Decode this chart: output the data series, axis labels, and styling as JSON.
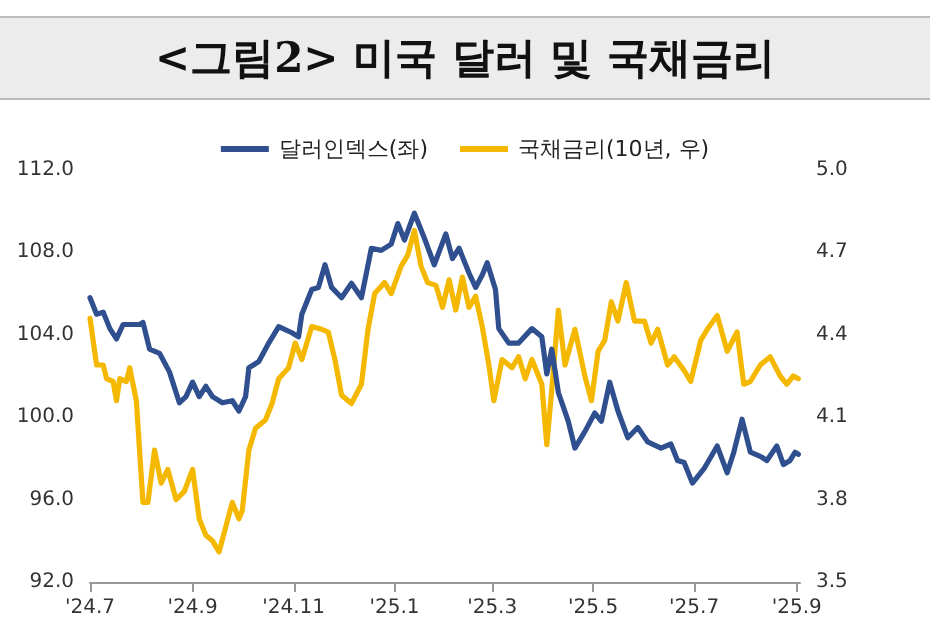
{
  "chart_data": {
    "type": "line",
    "title": "<그림2> 미국 달러 및 국채금리",
    "legend": "top",
    "grid": false,
    "marker": "none",
    "line_style": "solid",
    "xlim": [
      "2024-07-01",
      "2025-09-03"
    ],
    "xticks": [
      {
        "value": "2024-07-01",
        "label": "'24.7"
      },
      {
        "value": "2024-09-01",
        "label": "'24.9"
      },
      {
        "value": "2024-11-01",
        "label": "'24.11"
      },
      {
        "value": "2025-01-01",
        "label": "'25.1"
      },
      {
        "value": "2025-03-01",
        "label": "'25.3"
      },
      {
        "value": "2025-05-01",
        "label": "'25.5"
      },
      {
        "value": "2025-07-01",
        "label": "'25.7"
      },
      {
        "value": "2025-09-01",
        "label": "'25.9"
      }
    ],
    "ylim": [
      92,
      112
    ],
    "yticks": [
      {
        "value": 92,
        "label": "92.0"
      },
      {
        "value": 96,
        "label": "96.0"
      },
      {
        "value": 100,
        "label": "100.0"
      },
      {
        "value": 104,
        "label": "104.0"
      },
      {
        "value": 108,
        "label": "108.0"
      },
      {
        "value": 112,
        "label": "112.0"
      }
    ],
    "y2lim": [
      3.5,
      5.0
    ],
    "y2ticks": [
      3.5,
      3.8,
      4.1,
      4.4,
      4.7,
      {
        "value": 5.0,
        "label": "5.0"
      }
    ],
    "series": [
      {
        "name": "달러인덱스(좌)",
        "color": "#2f4f8f",
        "x": [
          "2024-07-01",
          "2024-07-05",
          "2024-07-09",
          "2024-07-13",
          "2024-07-17",
          "2024-07-21",
          "2024-07-31",
          "2024-08-02",
          "2024-08-06",
          "2024-08-12",
          "2024-08-18",
          "2024-08-24",
          "2024-08-28",
          "2024-09-01",
          "2024-09-05",
          "2024-09-09",
          "2024-09-13",
          "2024-09-19",
          "2024-09-25",
          "2024-09-29",
          "2024-10-03",
          "2024-10-05",
          "2024-10-11",
          "2024-10-17",
          "2024-10-23",
          "2024-10-31",
          "2024-11-04",
          "2024-11-06",
          "2024-11-12",
          "2024-11-16",
          "2024-11-20",
          "2024-11-24",
          "2024-11-30",
          "2024-12-06",
          "2024-12-12",
          "2024-12-18",
          "2024-12-24",
          "2024-12-30",
          "2025-01-03",
          "2025-01-07",
          "2025-01-13",
          "2025-01-19",
          "2025-01-25",
          "2025-02-01",
          "2025-02-05",
          "2025-02-09",
          "2025-02-15",
          "2025-02-19",
          "2025-02-23",
          "2025-02-26",
          "2025-03-03",
          "2025-03-05",
          "2025-03-11",
          "2025-03-17",
          "2025-03-25",
          "2025-03-31",
          "2025-04-03",
          "2025-04-06",
          "2025-04-10",
          "2025-04-16",
          "2025-04-20",
          "2025-04-26",
          "2025-05-02",
          "2025-05-06",
          "2025-05-11",
          "2025-05-16",
          "2025-05-22",
          "2025-05-28",
          "2025-06-03",
          "2025-06-11",
          "2025-06-17",
          "2025-06-21",
          "2025-06-25",
          "2025-06-30",
          "2025-07-07",
          "2025-07-15",
          "2025-07-21",
          "2025-07-25",
          "2025-07-30",
          "2025-08-04",
          "2025-08-10",
          "2025-08-14",
          "2025-08-20",
          "2025-08-24",
          "2025-08-28",
          "2025-08-31",
          "2025-09-02"
        ],
        "values": [
          105.8,
          105.0,
          105.1,
          104.3,
          103.8,
          104.5,
          104.5,
          104.6,
          103.3,
          103.1,
          102.2,
          100.7,
          101.0,
          101.7,
          101.0,
          101.5,
          101.0,
          100.7,
          100.8,
          100.3,
          101.0,
          102.4,
          102.7,
          103.6,
          104.4,
          104.1,
          103.9,
          105.0,
          106.2,
          106.3,
          107.4,
          106.3,
          105.8,
          106.5,
          105.8,
          108.2,
          108.1,
          108.4,
          109.4,
          108.6,
          109.9,
          108.7,
          107.4,
          108.9,
          107.7,
          108.2,
          107.0,
          106.3,
          106.9,
          107.5,
          106.2,
          104.3,
          103.6,
          103.6,
          104.3,
          103.9,
          102.1,
          103.3,
          101.2,
          99.8,
          98.5,
          99.3,
          100.2,
          99.8,
          101.7,
          100.3,
          99.0,
          99.5,
          98.8,
          98.5,
          98.7,
          97.9,
          97.8,
          96.8,
          97.5,
          98.6,
          97.3,
          98.3,
          99.9,
          98.3,
          98.1,
          97.9,
          98.6,
          97.7,
          97.9,
          98.3,
          98.2
        ]
      },
      {
        "name": "국채금리(10년, 우)",
        "color": "#f5b800",
        "axis": "y2",
        "x": [
          "2024-07-01",
          "2024-07-05",
          "2024-07-09",
          "2024-07-11",
          "2024-07-15",
          "2024-07-17",
          "2024-07-19",
          "2024-07-23",
          "2024-07-25",
          "2024-07-29",
          "2024-08-02",
          "2024-08-05",
          "2024-08-09",
          "2024-08-13",
          "2024-08-17",
          "2024-08-22",
          "2024-08-27",
          "2024-09-01",
          "2024-09-05",
          "2024-09-09",
          "2024-09-13",
          "2024-09-17",
          "2024-09-21",
          "2024-09-25",
          "2024-09-29",
          "2024-10-01",
          "2024-10-05",
          "2024-10-09",
          "2024-10-15",
          "2024-10-19",
          "2024-10-23",
          "2024-10-29",
          "2024-11-02",
          "2024-11-06",
          "2024-11-12",
          "2024-11-18",
          "2024-11-22",
          "2024-11-26",
          "2024-11-30",
          "2024-12-06",
          "2024-12-12",
          "2024-12-16",
          "2024-12-20",
          "2024-12-26",
          "2024-12-30",
          "2025-01-05",
          "2025-01-09",
          "2025-01-13",
          "2025-01-17",
          "2025-01-21",
          "2025-01-26",
          "2025-01-30",
          "2025-02-03",
          "2025-02-07",
          "2025-02-11",
          "2025-02-15",
          "2025-02-19",
          "2025-02-23",
          "2025-02-27",
          "2025-03-02",
          "2025-03-07",
          "2025-03-13",
          "2025-03-17",
          "2025-03-21",
          "2025-03-25",
          "2025-03-31",
          "2025-04-03",
          "2025-04-06",
          "2025-04-10",
          "2025-04-14",
          "2025-04-20",
          "2025-04-26",
          "2025-04-30",
          "2025-05-04",
          "2025-05-08",
          "2025-05-12",
          "2025-05-16",
          "2025-05-21",
          "2025-05-26",
          "2025-06-01",
          "2025-06-05",
          "2025-06-09",
          "2025-06-15",
          "2025-06-19",
          "2025-06-25",
          "2025-06-29",
          "2025-07-05",
          "2025-07-09",
          "2025-07-15",
          "2025-07-21",
          "2025-07-27",
          "2025-07-31",
          "2025-08-04",
          "2025-08-10",
          "2025-08-16",
          "2025-08-22",
          "2025-08-26",
          "2025-08-30",
          "2025-09-02"
        ],
        "values": [
          4.46,
          4.29,
          4.29,
          4.24,
          4.23,
          4.16,
          4.24,
          4.23,
          4.28,
          4.16,
          3.79,
          3.79,
          3.98,
          3.86,
          3.91,
          3.8,
          3.83,
          3.91,
          3.73,
          3.67,
          3.65,
          3.61,
          3.7,
          3.79,
          3.73,
          3.76,
          3.98,
          4.06,
          4.09,
          4.15,
          4.24,
          4.28,
          4.37,
          4.31,
          4.43,
          4.42,
          4.41,
          4.31,
          4.18,
          4.15,
          4.22,
          4.42,
          4.55,
          4.59,
          4.55,
          4.65,
          4.69,
          4.78,
          4.65,
          4.59,
          4.58,
          4.5,
          4.6,
          4.49,
          4.61,
          4.5,
          4.54,
          4.43,
          4.29,
          4.16,
          4.31,
          4.28,
          4.32,
          4.24,
          4.31,
          4.22,
          4.0,
          4.2,
          4.49,
          4.29,
          4.42,
          4.25,
          4.16,
          4.34,
          4.38,
          4.52,
          4.45,
          4.59,
          4.45,
          4.45,
          4.37,
          4.42,
          4.29,
          4.32,
          4.27,
          4.23,
          4.38,
          4.42,
          4.47,
          4.34,
          4.41,
          4.22,
          4.23,
          4.29,
          4.32,
          4.25,
          4.22,
          4.25,
          4.24
        ]
      }
    ]
  }
}
